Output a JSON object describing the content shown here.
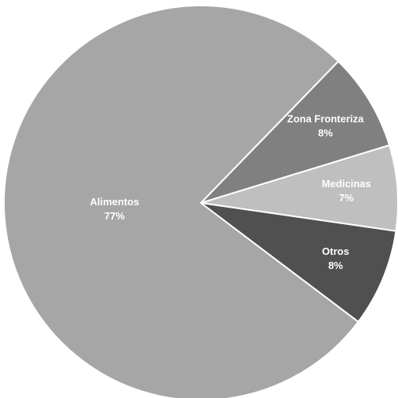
{
  "chart_data": {
    "type": "pie",
    "categories": [
      "Alimentos",
      "Zona Fronteriza",
      "Medicinas",
      "Otros"
    ],
    "values": [
      77,
      8,
      7,
      8
    ],
    "value_labels": [
      "77%",
      "8%",
      "7%",
      "8%"
    ],
    "colors": [
      "#a6a6a6",
      "#808080",
      "#bfbfbf",
      "#505050"
    ]
  }
}
